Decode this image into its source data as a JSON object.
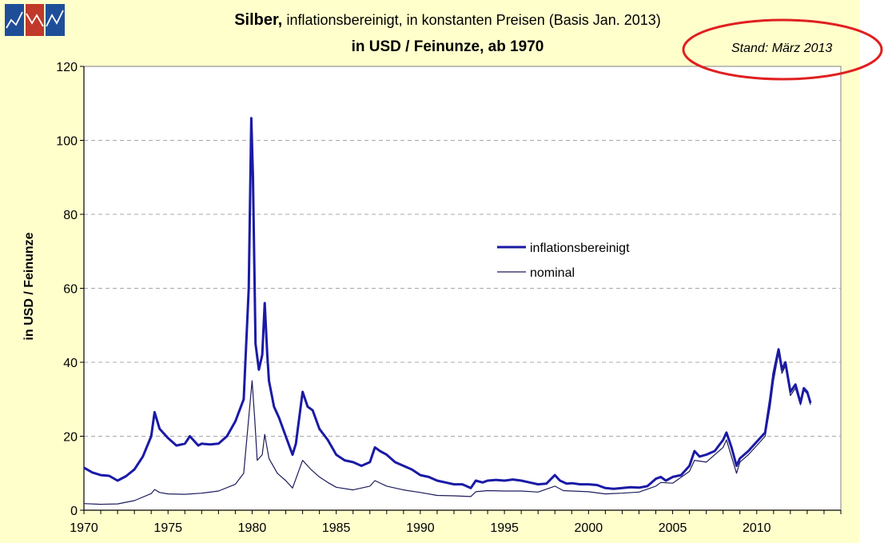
{
  "title": {
    "bold": "Silber,",
    "rest": "inflationsbereinigt, in konstanten Preisen (Basis Jan. 2013)",
    "line2": "in USD / Feinunze, ab 1970"
  },
  "stand_label": "Stand: März 2013",
  "colors": {
    "panel_background": "#ffffcc",
    "plot_background": "#ffffff",
    "inflation_line": "#1a1aa6",
    "nominal_line": "#1c1c5c",
    "highlight_ellipse": "#e02020",
    "logo_blue": "#1f4e99",
    "logo_red": "#c0392b"
  },
  "logo": {
    "icon": "zigzag-chart-logo-icon",
    "squares": 3
  },
  "chart_data": {
    "type": "line",
    "ylabel": "in USD / Feinunze",
    "xlabel": "",
    "xlim": [
      1970,
      2015
    ],
    "ylim": [
      0,
      120
    ],
    "yticks": [
      0,
      20,
      40,
      60,
      80,
      100,
      120
    ],
    "xticks": [
      1970,
      1975,
      1980,
      1985,
      1990,
      1995,
      2000,
      2005,
      2010
    ],
    "grid": "horizontal dashed",
    "legend_position": "center-right",
    "series": [
      {
        "name": "inflationsbereinigt",
        "width": "thick",
        "points": [
          [
            1970.0,
            11.5
          ],
          [
            1970.5,
            10.2
          ],
          [
            1971.0,
            9.5
          ],
          [
            1971.5,
            9.3
          ],
          [
            1972.0,
            8.0
          ],
          [
            1972.5,
            9.2
          ],
          [
            1973.0,
            11.0
          ],
          [
            1973.5,
            14.5
          ],
          [
            1974.0,
            20.0
          ],
          [
            1974.2,
            26.5
          ],
          [
            1974.5,
            22.0
          ],
          [
            1975.0,
            19.5
          ],
          [
            1975.5,
            17.5
          ],
          [
            1976.0,
            18.0
          ],
          [
            1976.3,
            20.0
          ],
          [
            1976.8,
            17.5
          ],
          [
            1977.0,
            18.0
          ],
          [
            1977.5,
            17.8
          ],
          [
            1978.0,
            18.0
          ],
          [
            1978.5,
            20.0
          ],
          [
            1979.0,
            24.0
          ],
          [
            1979.5,
            30.0
          ],
          [
            1979.8,
            60.0
          ],
          [
            1979.95,
            106.0
          ],
          [
            1980.05,
            90.0
          ],
          [
            1980.2,
            45.0
          ],
          [
            1980.4,
            38.0
          ],
          [
            1980.6,
            42.0
          ],
          [
            1980.75,
            56.0
          ],
          [
            1980.9,
            42.0
          ],
          [
            1981.0,
            35.0
          ],
          [
            1981.3,
            28.0
          ],
          [
            1981.6,
            25.0
          ],
          [
            1982.0,
            20.0
          ],
          [
            1982.4,
            15.0
          ],
          [
            1982.6,
            18.0
          ],
          [
            1983.0,
            32.0
          ],
          [
            1983.3,
            28.0
          ],
          [
            1983.6,
            27.0
          ],
          [
            1984.0,
            22.0
          ],
          [
            1984.5,
            19.0
          ],
          [
            1985.0,
            15.0
          ],
          [
            1985.5,
            13.5
          ],
          [
            1986.0,
            13.0
          ],
          [
            1986.5,
            12.0
          ],
          [
            1987.0,
            13.0
          ],
          [
            1987.3,
            17.0
          ],
          [
            1987.6,
            16.0
          ],
          [
            1988.0,
            15.0
          ],
          [
            1988.5,
            13.0
          ],
          [
            1989.0,
            12.0
          ],
          [
            1989.5,
            11.0
          ],
          [
            1990.0,
            9.5
          ],
          [
            1990.5,
            9.0
          ],
          [
            1991.0,
            8.0
          ],
          [
            1991.5,
            7.5
          ],
          [
            1992.0,
            7.0
          ],
          [
            1992.5,
            7.0
          ],
          [
            1993.0,
            6.0
          ],
          [
            1993.3,
            8.0
          ],
          [
            1993.7,
            7.5
          ],
          [
            1994.0,
            8.0
          ],
          [
            1994.5,
            8.2
          ],
          [
            1995.0,
            8.0
          ],
          [
            1995.5,
            8.3
          ],
          [
            1996.0,
            8.0
          ],
          [
            1996.5,
            7.5
          ],
          [
            1997.0,
            7.0
          ],
          [
            1997.5,
            7.2
          ],
          [
            1998.0,
            9.5
          ],
          [
            1998.3,
            8.0
          ],
          [
            1998.7,
            7.2
          ],
          [
            1999.0,
            7.3
          ],
          [
            1999.5,
            7.0
          ],
          [
            2000.0,
            7.0
          ],
          [
            2000.5,
            6.8
          ],
          [
            2001.0,
            6.0
          ],
          [
            2001.5,
            5.8
          ],
          [
            2002.0,
            6.0
          ],
          [
            2002.5,
            6.2
          ],
          [
            2003.0,
            6.1
          ],
          [
            2003.5,
            6.5
          ],
          [
            2004.0,
            8.5
          ],
          [
            2004.3,
            9.0
          ],
          [
            2004.6,
            8.0
          ],
          [
            2005.0,
            9.0
          ],
          [
            2005.5,
            9.5
          ],
          [
            2006.0,
            12.0
          ],
          [
            2006.3,
            16.0
          ],
          [
            2006.6,
            14.5
          ],
          [
            2007.0,
            15.0
          ],
          [
            2007.5,
            16.0
          ],
          [
            2008.0,
            19.0
          ],
          [
            2008.2,
            21.0
          ],
          [
            2008.5,
            17.0
          ],
          [
            2008.8,
            12.0
          ],
          [
            2009.0,
            14.0
          ],
          [
            2009.5,
            16.0
          ],
          [
            2010.0,
            18.5
          ],
          [
            2010.5,
            21.0
          ],
          [
            2010.8,
            30.0
          ],
          [
            2011.0,
            37.0
          ],
          [
            2011.3,
            43.5
          ],
          [
            2011.5,
            38.0
          ],
          [
            2011.7,
            40.0
          ],
          [
            2012.0,
            32.0
          ],
          [
            2012.3,
            34.0
          ],
          [
            2012.6,
            29.0
          ],
          [
            2012.8,
            33.0
          ],
          [
            2013.0,
            32.0
          ],
          [
            2013.2,
            29.0
          ]
        ]
      },
      {
        "name": "nominal",
        "width": "thin",
        "points": [
          [
            1970.0,
            1.8
          ],
          [
            1971.0,
            1.6
          ],
          [
            1972.0,
            1.7
          ],
          [
            1973.0,
            2.6
          ],
          [
            1974.0,
            4.5
          ],
          [
            1974.2,
            5.6
          ],
          [
            1974.5,
            4.8
          ],
          [
            1975.0,
            4.4
          ],
          [
            1976.0,
            4.3
          ],
          [
            1977.0,
            4.6
          ],
          [
            1978.0,
            5.2
          ],
          [
            1979.0,
            7.0
          ],
          [
            1979.5,
            10.0
          ],
          [
            1979.8,
            25.0
          ],
          [
            1980.0,
            35.0
          ],
          [
            1980.15,
            25.0
          ],
          [
            1980.3,
            13.5
          ],
          [
            1980.6,
            15.0
          ],
          [
            1980.75,
            20.5
          ],
          [
            1981.0,
            14.0
          ],
          [
            1981.5,
            10.0
          ],
          [
            1982.0,
            8.0
          ],
          [
            1982.4,
            6.0
          ],
          [
            1983.0,
            13.5
          ],
          [
            1983.5,
            11.0
          ],
          [
            1984.0,
            9.0
          ],
          [
            1984.5,
            7.5
          ],
          [
            1985.0,
            6.2
          ],
          [
            1986.0,
            5.5
          ],
          [
            1987.0,
            6.5
          ],
          [
            1987.3,
            8.0
          ],
          [
            1988.0,
            6.5
          ],
          [
            1989.0,
            5.5
          ],
          [
            1990.0,
            4.8
          ],
          [
            1991.0,
            4.0
          ],
          [
            1992.0,
            3.9
          ],
          [
            1993.0,
            3.7
          ],
          [
            1993.3,
            5.0
          ],
          [
            1994.0,
            5.3
          ],
          [
            1995.0,
            5.2
          ],
          [
            1996.0,
            5.2
          ],
          [
            1997.0,
            4.9
          ],
          [
            1998.0,
            6.5
          ],
          [
            1998.5,
            5.3
          ],
          [
            1999.0,
            5.2
          ],
          [
            2000.0,
            5.0
          ],
          [
            2001.0,
            4.4
          ],
          [
            2002.0,
            4.6
          ],
          [
            2003.0,
            4.9
          ],
          [
            2004.0,
            6.5
          ],
          [
            2004.3,
            7.5
          ],
          [
            2005.0,
            7.3
          ],
          [
            2006.0,
            10.5
          ],
          [
            2006.3,
            13.5
          ],
          [
            2007.0,
            13.0
          ],
          [
            2008.0,
            17.0
          ],
          [
            2008.2,
            19.0
          ],
          [
            2008.8,
            10.0
          ],
          [
            2009.0,
            13.0
          ],
          [
            2009.5,
            15.0
          ],
          [
            2010.0,
            17.5
          ],
          [
            2010.5,
            20.0
          ],
          [
            2010.8,
            28.0
          ],
          [
            2011.0,
            35.0
          ],
          [
            2011.3,
            42.5
          ],
          [
            2011.5,
            37.0
          ],
          [
            2011.7,
            39.0
          ],
          [
            2012.0,
            31.0
          ],
          [
            2012.3,
            33.0
          ],
          [
            2012.6,
            28.5
          ],
          [
            2012.8,
            32.5
          ],
          [
            2013.0,
            31.5
          ],
          [
            2013.2,
            28.5
          ]
        ]
      }
    ]
  }
}
